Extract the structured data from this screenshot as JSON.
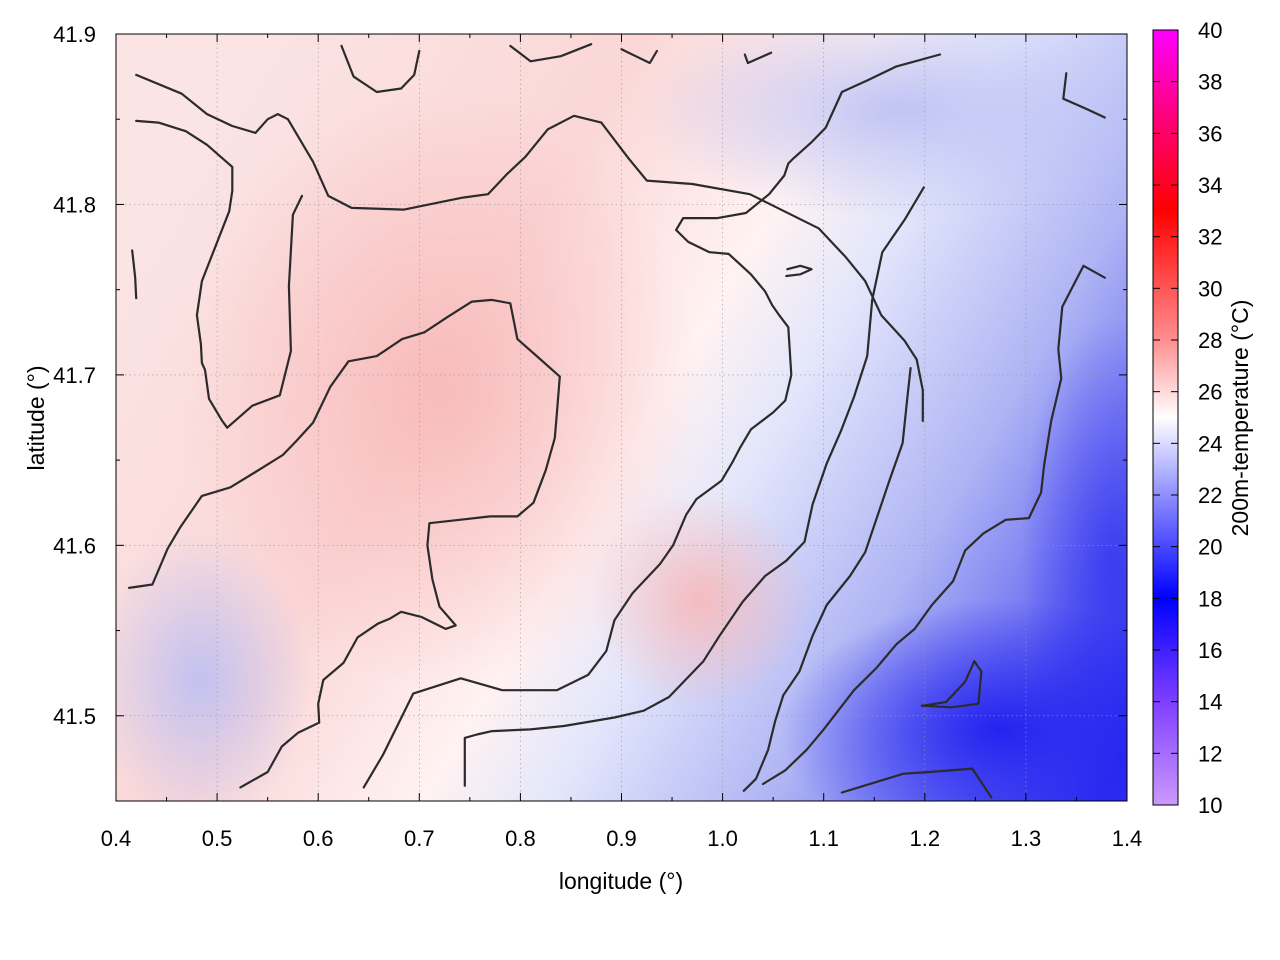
{
  "chart_data": {
    "type": "heatmap",
    "title": "",
    "xlabel": "longitude (°)",
    "ylabel": "latitude (°)",
    "xlim": [
      0.4,
      1.4
    ],
    "ylim": [
      41.45,
      41.9
    ],
    "x_ticks": [
      "0.4",
      "0.5",
      "0.6",
      "0.7",
      "0.8",
      "0.9",
      "1.0",
      "1.1",
      "1.2",
      "1.3",
      "1.4"
    ],
    "y_ticks": [
      "41.5",
      "41.6",
      "41.7",
      "41.8",
      "41.9"
    ],
    "grid": true,
    "colorbar": {
      "label": "200m-temperature (°C)",
      "range": [
        10,
        40
      ],
      "ticks": [
        "10",
        "12",
        "14",
        "16",
        "18",
        "20",
        "22",
        "24",
        "26",
        "28",
        "30",
        "32",
        "34",
        "36",
        "38",
        "40"
      ],
      "stops": [
        {
          "v": 10,
          "color": "#cc99ff"
        },
        {
          "v": 14,
          "color": "#7f3fff"
        },
        {
          "v": 18,
          "color": "#0000ff"
        },
        {
          "v": 22,
          "color": "#8f8fff"
        },
        {
          "v": 25,
          "color": "#ffffff"
        },
        {
          "v": 28,
          "color": "#ff8f8f"
        },
        {
          "v": 33,
          "color": "#ff0000"
        },
        {
          "v": 37,
          "color": "#ff0088"
        },
        {
          "v": 40,
          "color": "#ff00ff"
        }
      ]
    },
    "contours": [
      {
        "points": [
          [
            0.42,
            41.876
          ],
          [
            0.465,
            41.865
          ],
          [
            0.49,
            41.853
          ],
          [
            0.515,
            41.846
          ],
          [
            0.538,
            41.842
          ],
          [
            0.55,
            41.85
          ],
          [
            0.56,
            41.853
          ],
          [
            0.57,
            41.85
          ],
          [
            0.595,
            41.825
          ],
          [
            0.61,
            41.805
          ],
          [
            0.633,
            41.798
          ],
          [
            0.685,
            41.797
          ],
          [
            0.743,
            41.804
          ],
          [
            0.768,
            41.806
          ],
          [
            0.787,
            41.818
          ],
          [
            0.805,
            41.828
          ],
          [
            0.827,
            41.844
          ],
          [
            0.853,
            41.852
          ],
          [
            0.88,
            41.848
          ],
          [
            0.907,
            41.827
          ],
          [
            0.925,
            41.814
          ],
          [
            0.97,
            41.812
          ],
          [
            1.027,
            41.806
          ],
          [
            1.095,
            41.786
          ],
          [
            1.122,
            41.769
          ],
          [
            1.141,
            41.755
          ],
          [
            1.157,
            41.735
          ],
          [
            1.18,
            41.72
          ],
          [
            1.192,
            41.709
          ],
          [
            1.198,
            41.691
          ],
          [
            1.198,
            41.673
          ]
        ]
      },
      {
        "points": [
          [
            0.42,
            41.849
          ],
          [
            0.442,
            41.848
          ],
          [
            0.469,
            41.843
          ],
          [
            0.49,
            41.835
          ],
          [
            0.515,
            41.822
          ],
          [
            0.515,
            41.808
          ],
          [
            0.512,
            41.796
          ],
          [
            0.485,
            41.755
          ],
          [
            0.48,
            41.735
          ],
          [
            0.484,
            41.718
          ],
          [
            0.485,
            41.707
          ],
          [
            0.488,
            41.703
          ],
          [
            0.492,
            41.686
          ],
          [
            0.505,
            41.673
          ],
          [
            0.51,
            41.669
          ],
          [
            0.535,
            41.682
          ],
          [
            0.562,
            41.688
          ],
          [
            0.573,
            41.714
          ],
          [
            0.571,
            41.752
          ],
          [
            0.575,
            41.794
          ],
          [
            0.584,
            41.805
          ]
        ]
      },
      {
        "points": [
          [
            0.413,
            41.575
          ],
          [
            0.436,
            41.577
          ],
          [
            0.451,
            41.598
          ],
          [
            0.464,
            41.611
          ],
          [
            0.485,
            41.629
          ],
          [
            0.513,
            41.634
          ],
          [
            0.538,
            41.643
          ],
          [
            0.565,
            41.653
          ],
          [
            0.578,
            41.661
          ],
          [
            0.595,
            41.672
          ],
          [
            0.612,
            41.693
          ],
          [
            0.63,
            41.708
          ],
          [
            0.658,
            41.711
          ],
          [
            0.683,
            41.721
          ],
          [
            0.705,
            41.725
          ],
          [
            0.728,
            41.734
          ],
          [
            0.752,
            41.743
          ],
          [
            0.772,
            41.744
          ],
          [
            0.79,
            41.742
          ],
          [
            0.797,
            41.721
          ],
          [
            0.82,
            41.709
          ],
          [
            0.839,
            41.699
          ],
          [
            0.836,
            41.677
          ],
          [
            0.834,
            41.663
          ],
          [
            0.825,
            41.644
          ],
          [
            0.813,
            41.625
          ],
          [
            0.797,
            41.617
          ],
          [
            0.77,
            41.617
          ],
          [
            0.74,
            41.615
          ],
          [
            0.71,
            41.613
          ],
          [
            0.708,
            41.6
          ],
          [
            0.713,
            41.58
          ],
          [
            0.72,
            41.564
          ],
          [
            0.736,
            41.553
          ],
          [
            0.726,
            41.551
          ],
          [
            0.702,
            41.558
          ],
          [
            0.682,
            41.561
          ],
          [
            0.671,
            41.557
          ],
          [
            0.659,
            41.554
          ],
          [
            0.639,
            41.546
          ],
          [
            0.625,
            41.531
          ],
          [
            0.605,
            41.521
          ],
          [
            0.6,
            41.507
          ],
          [
            0.601,
            41.496
          ],
          [
            0.58,
            41.49
          ],
          [
            0.564,
            41.482
          ],
          [
            0.55,
            41.467
          ],
          [
            0.523,
            41.458
          ]
        ]
      },
      {
        "points": [
          [
            0.645,
            41.458
          ],
          [
            0.664,
            41.477
          ],
          [
            0.679,
            41.495
          ],
          [
            0.694,
            41.513
          ],
          [
            0.741,
            41.522
          ],
          [
            0.782,
            41.515
          ],
          [
            0.836,
            41.515
          ],
          [
            0.867,
            41.524
          ],
          [
            0.885,
            41.538
          ],
          [
            0.893,
            41.556
          ],
          [
            0.911,
            41.572
          ],
          [
            0.938,
            41.589
          ],
          [
            0.951,
            41.6
          ],
          [
            0.964,
            41.618
          ],
          [
            0.974,
            41.627
          ],
          [
            0.999,
            41.638
          ],
          [
            1.01,
            41.649
          ],
          [
            1.017,
            41.657
          ],
          [
            1.028,
            41.668
          ],
          [
            1.05,
            41.678
          ],
          [
            1.062,
            41.685
          ],
          [
            1.068,
            41.7
          ],
          [
            1.065,
            41.728
          ],
          [
            1.056,
            41.735
          ],
          [
            1.049,
            41.741
          ],
          [
            1.042,
            41.749
          ],
          [
            1.028,
            41.759
          ],
          [
            1.006,
            41.771
          ],
          [
            0.987,
            41.772
          ],
          [
            0.966,
            41.778
          ],
          [
            0.954,
            41.785
          ],
          [
            0.961,
            41.792
          ],
          [
            0.995,
            41.792
          ],
          [
            1.023,
            41.795
          ],
          [
            1.046,
            41.806
          ],
          [
            1.061,
            41.817
          ],
          [
            1.065,
            41.824
          ],
          [
            1.07,
            41.827
          ],
          [
            1.087,
            41.836
          ],
          [
            1.102,
            41.845
          ],
          [
            1.118,
            41.866
          ],
          [
            1.144,
            41.873
          ],
          [
            1.172,
            41.881
          ],
          [
            1.215,
            41.888
          ]
        ]
      },
      {
        "points": [
          [
            1.021,
            41.456
          ],
          [
            1.033,
            41.463
          ],
          [
            1.045,
            41.48
          ],
          [
            1.052,
            41.497
          ],
          [
            1.06,
            41.512
          ],
          [
            1.076,
            41.526
          ],
          [
            1.089,
            41.547
          ],
          [
            1.103,
            41.565
          ],
          [
            1.126,
            41.582
          ],
          [
            1.141,
            41.596
          ],
          [
            1.153,
            41.617
          ],
          [
            1.165,
            41.638
          ],
          [
            1.178,
            41.66
          ],
          [
            1.183,
            41.688
          ],
          [
            1.186,
            41.704
          ]
        ]
      },
      {
        "points": [
          [
            0.745,
            41.459
          ],
          [
            0.745,
            41.487
          ],
          [
            0.757,
            41.489
          ],
          [
            0.772,
            41.491
          ],
          [
            0.81,
            41.492
          ],
          [
            0.843,
            41.494
          ],
          [
            0.893,
            41.499
          ],
          [
            0.922,
            41.503
          ],
          [
            0.947,
            41.511
          ],
          [
            0.981,
            41.532
          ],
          [
            0.997,
            41.547
          ],
          [
            1.02,
            41.567
          ],
          [
            1.042,
            41.582
          ],
          [
            1.063,
            41.591
          ],
          [
            1.081,
            41.602
          ],
          [
            1.089,
            41.624
          ],
          [
            1.103,
            41.648
          ],
          [
            1.117,
            41.667
          ],
          [
            1.13,
            41.687
          ],
          [
            1.143,
            41.711
          ],
          [
            1.148,
            41.744
          ],
          [
            1.158,
            41.772
          ],
          [
            1.18,
            41.791
          ],
          [
            1.199,
            41.81
          ]
        ]
      },
      {
        "points": [
          [
            1.118,
            41.455
          ],
          [
            1.151,
            41.461
          ],
          [
            1.179,
            41.466
          ],
          [
            1.205,
            41.467
          ],
          [
            1.247,
            41.469
          ],
          [
            1.266,
            41.452
          ]
        ]
      },
      {
        "points": [
          [
            1.197,
            41.506
          ],
          [
            1.226,
            41.505
          ],
          [
            1.253,
            41.507
          ],
          [
            1.256,
            41.526
          ],
          [
            1.249,
            41.532
          ],
          [
            1.24,
            41.52
          ],
          [
            1.221,
            41.508
          ],
          [
            1.199,
            41.506
          ]
        ]
      },
      {
        "points": [
          [
            1.063,
            41.758
          ],
          [
            1.077,
            41.759
          ],
          [
            1.088,
            41.762
          ],
          [
            1.077,
            41.764
          ],
          [
            1.064,
            41.762
          ]
        ]
      },
      {
        "points": [
          [
            0.42,
            41.745
          ],
          [
            0.419,
            41.757
          ],
          [
            0.416,
            41.773
          ]
        ]
      },
      {
        "points": [
          [
            0.623,
            41.893
          ],
          [
            0.635,
            41.875
          ],
          [
            0.658,
            41.866
          ],
          [
            0.682,
            41.868
          ],
          [
            0.695,
            41.876
          ],
          [
            0.7,
            41.89
          ]
        ]
      },
      {
        "points": [
          [
            0.79,
            41.893
          ],
          [
            0.81,
            41.884
          ],
          [
            0.84,
            41.887
          ],
          [
            0.87,
            41.894
          ]
        ]
      },
      {
        "points": [
          [
            0.9,
            41.891
          ],
          [
            0.928,
            41.883
          ],
          [
            0.935,
            41.89
          ]
        ]
      },
      {
        "points": [
          [
            1.022,
            41.888
          ],
          [
            1.025,
            41.883
          ],
          [
            1.048,
            41.889
          ]
        ]
      },
      {
        "points": [
          [
            1.34,
            41.877
          ],
          [
            1.337,
            41.862
          ],
          [
            1.36,
            41.856
          ],
          [
            1.378,
            41.851
          ]
        ]
      },
      {
        "points": [
          [
            1.378,
            41.757
          ],
          [
            1.357,
            41.764
          ],
          [
            1.336,
            41.74
          ],
          [
            1.332,
            41.715
          ],
          [
            1.335,
            41.698
          ],
          [
            1.325,
            41.673
          ],
          [
            1.318,
            41.647
          ],
          [
            1.315,
            41.631
          ],
          [
            1.303,
            41.616
          ],
          [
            1.28,
            41.615
          ],
          [
            1.258,
            41.607
          ],
          [
            1.24,
            41.597
          ],
          [
            1.228,
            41.579
          ],
          [
            1.207,
            41.565
          ],
          [
            1.19,
            41.551
          ],
          [
            1.172,
            41.542
          ],
          [
            1.152,
            41.528
          ],
          [
            1.13,
            41.515
          ],
          [
            1.1,
            41.492
          ],
          [
            1.083,
            41.48
          ],
          [
            1.062,
            41.468
          ],
          [
            1.04,
            41.46
          ]
        ]
      }
    ]
  }
}
